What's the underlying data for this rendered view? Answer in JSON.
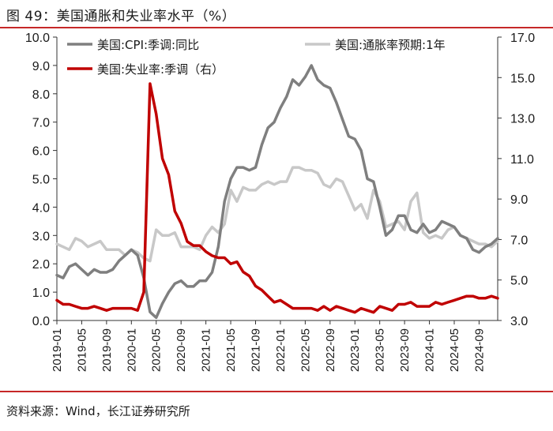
{
  "title": "图 49：美国通胀和失业率水平（%）",
  "source": "资料来源：Wind，长江证券研究所",
  "colors": {
    "cpi": "#7f7f7f",
    "infl_exp": "#c8c8c8",
    "unemp": "#c00000",
    "accent": "#c62828"
  },
  "chart_data": {
    "type": "line",
    "title": "",
    "xlabel": "",
    "ylabel": "",
    "ylim": [
      0,
      10
    ],
    "y2lim": [
      3,
      17
    ],
    "y_ticks": [
      "0.0",
      "1.0",
      "2.0",
      "3.0",
      "4.0",
      "5.0",
      "6.0",
      "7.0",
      "8.0",
      "9.0",
      "10.0"
    ],
    "y2_ticks": [
      "3.0",
      "5.0",
      "7.0",
      "9.0",
      "11.0",
      "13.0",
      "15.0",
      "17.0"
    ],
    "x_tick_labels": [
      "2019-01",
      "2019-05",
      "2019-09",
      "2020-01",
      "2020-05",
      "2020-09",
      "2021-01",
      "2021-05",
      "2021-09",
      "2022-01",
      "2022-05",
      "2022-09",
      "2023-01",
      "2023-05",
      "2023-09",
      "2024-01",
      "2024-05",
      "2024-09"
    ],
    "x": [
      "2019-01",
      "2019-02",
      "2019-03",
      "2019-04",
      "2019-05",
      "2019-06",
      "2019-07",
      "2019-08",
      "2019-09",
      "2019-10",
      "2019-11",
      "2019-12",
      "2020-01",
      "2020-02",
      "2020-03",
      "2020-04",
      "2020-05",
      "2020-06",
      "2020-07",
      "2020-08",
      "2020-09",
      "2020-10",
      "2020-11",
      "2020-12",
      "2021-01",
      "2021-02",
      "2021-03",
      "2021-04",
      "2021-05",
      "2021-06",
      "2021-07",
      "2021-08",
      "2021-09",
      "2021-10",
      "2021-11",
      "2021-12",
      "2022-01",
      "2022-02",
      "2022-03",
      "2022-04",
      "2022-05",
      "2022-06",
      "2022-07",
      "2022-08",
      "2022-09",
      "2022-10",
      "2022-11",
      "2022-12",
      "2023-01",
      "2023-02",
      "2023-03",
      "2023-04",
      "2023-05",
      "2023-06",
      "2023-07",
      "2023-08",
      "2023-09",
      "2023-10",
      "2023-11",
      "2023-12",
      "2024-01",
      "2024-02",
      "2024-03",
      "2024-04",
      "2024-05",
      "2024-06",
      "2024-07",
      "2024-08",
      "2024-09",
      "2024-10",
      "2024-11",
      "2024-12"
    ],
    "legend": [
      {
        "name": "美国:CPI:季调:同比",
        "series": 0
      },
      {
        "name": "美国:通胀率预期:1年",
        "series": 1
      },
      {
        "name": "美国:失业率:季调（右）",
        "series": 2
      }
    ],
    "legend_placement": "top",
    "grid": false,
    "series": [
      {
        "name": "美国:CPI:季调:同比",
        "axis": "left",
        "color": "#7f7f7f",
        "values": [
          1.6,
          1.5,
          1.9,
          2.0,
          1.8,
          1.6,
          1.8,
          1.7,
          1.7,
          1.8,
          2.1,
          2.3,
          2.5,
          2.3,
          1.5,
          0.3,
          0.1,
          0.6,
          1.0,
          1.3,
          1.4,
          1.2,
          1.2,
          1.4,
          1.4,
          1.7,
          2.6,
          4.2,
          5.0,
          5.4,
          5.4,
          5.3,
          5.4,
          6.2,
          6.8,
          7.0,
          7.5,
          7.9,
          8.5,
          8.3,
          8.6,
          9.0,
          8.5,
          8.3,
          8.2,
          7.7,
          7.1,
          6.5,
          6.4,
          6.0,
          5.0,
          4.9,
          4.0,
          3.0,
          3.2,
          3.7,
          3.7,
          3.2,
          3.1,
          3.4,
          3.1,
          3.2,
          3.5,
          3.4,
          3.3,
          3.0,
          2.9,
          2.5,
          2.4,
          2.6,
          2.7,
          2.9
        ]
      },
      {
        "name": "美国:通胀率预期:1年",
        "axis": "left",
        "color": "#c8c8c8",
        "values": [
          2.7,
          2.6,
          2.5,
          2.9,
          2.8,
          2.6,
          2.7,
          2.8,
          2.5,
          2.5,
          2.5,
          2.3,
          2.5,
          2.4,
          2.2,
          2.1,
          3.2,
          3.0,
          3.0,
          3.1,
          2.6,
          2.6,
          2.6,
          2.5,
          3.0,
          3.3,
          3.1,
          3.4,
          4.6,
          4.2,
          4.7,
          4.6,
          4.6,
          4.8,
          4.9,
          4.8,
          4.9,
          4.9,
          5.4,
          5.4,
          5.3,
          5.3,
          5.2,
          4.8,
          4.7,
          5.0,
          4.9,
          4.4,
          3.9,
          4.1,
          3.6,
          4.6,
          4.2,
          3.3,
          3.4,
          3.5,
          3.2,
          4.2,
          4.5,
          3.1,
          2.9,
          3.0,
          2.9,
          3.2,
          3.3,
          3.0,
          2.9,
          2.8,
          2.7,
          2.7,
          2.6,
          2.8
        ]
      },
      {
        "name": "美国:失业率:季调（右）",
        "axis": "right",
        "color": "#c00000",
        "values": [
          4.0,
          3.8,
          3.8,
          3.7,
          3.6,
          3.6,
          3.7,
          3.6,
          3.5,
          3.6,
          3.6,
          3.6,
          3.6,
          3.5,
          4.4,
          14.7,
          13.2,
          11.0,
          10.2,
          8.4,
          7.8,
          6.9,
          6.7,
          6.7,
          6.4,
          6.2,
          6.1,
          6.1,
          5.8,
          5.9,
          5.4,
          5.2,
          4.7,
          4.5,
          4.2,
          3.9,
          4.0,
          3.8,
          3.6,
          3.6,
          3.6,
          3.6,
          3.5,
          3.7,
          3.5,
          3.7,
          3.6,
          3.5,
          3.4,
          3.6,
          3.5,
          3.4,
          3.7,
          3.6,
          3.5,
          3.8,
          3.8,
          3.9,
          3.7,
          3.7,
          3.7,
          3.9,
          3.8,
          3.9,
          4.0,
          4.1,
          4.2,
          4.2,
          4.1,
          4.1,
          4.2,
          4.1
        ]
      }
    ]
  }
}
